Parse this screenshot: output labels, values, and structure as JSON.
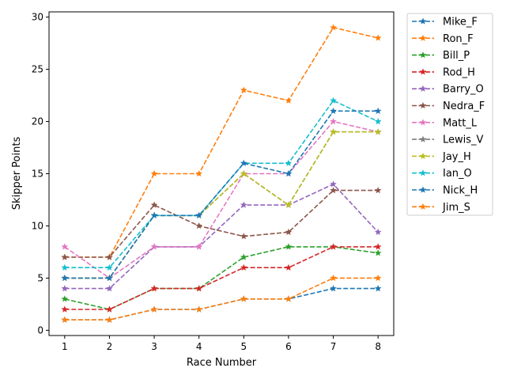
{
  "chart_data": {
    "type": "line",
    "xlabel": "Race Number",
    "ylabel": "Skipper Points",
    "x": [
      1,
      2,
      3,
      4,
      5,
      6,
      7,
      8
    ],
    "xticks": [
      "1",
      "2",
      "3",
      "4",
      "5",
      "6",
      "7",
      "8"
    ],
    "yticks": [
      "0",
      "5",
      "10",
      "15",
      "20",
      "25",
      "30"
    ],
    "xlim": [
      0.65,
      8.35
    ],
    "ylim": [
      -0.5,
      30.5
    ],
    "line_style": "dashed",
    "marker": "star",
    "legend_placement": "outside-right-top",
    "grid": false,
    "series": [
      {
        "name": "Mike_F",
        "color": "#1f77b4",
        "values": [
          1,
          1,
          2,
          2,
          3,
          3,
          4,
          4
        ]
      },
      {
        "name": "Ron_F",
        "color": "#ff7f0e",
        "values": [
          7,
          7,
          15,
          15,
          23,
          22,
          29,
          28
        ]
      },
      {
        "name": "Bill_P",
        "color": "#2ca02c",
        "values": [
          3,
          2,
          4,
          4,
          7,
          8,
          8,
          7.4
        ]
      },
      {
        "name": "Rod_H",
        "color": "#d62728",
        "values": [
          2,
          2,
          4,
          4,
          6,
          6,
          8,
          8
        ]
      },
      {
        "name": "Barry_O",
        "color": "#9467bd",
        "values": [
          4,
          4,
          8,
          8,
          12,
          12,
          14,
          9.4
        ]
      },
      {
        "name": "Nedra_F",
        "color": "#8c564b",
        "values": [
          7,
          7,
          12,
          10,
          9,
          9.4,
          13.4,
          13.4
        ]
      },
      {
        "name": "Matt_L",
        "color": "#e377c2",
        "values": [
          8,
          5,
          8,
          8,
          15,
          15,
          20,
          19
        ]
      },
      {
        "name": "Lewis_V",
        "color": "#7f7f7f",
        "values": [
          5,
          5,
          11,
          11,
          15,
          12,
          19,
          19
        ]
      },
      {
        "name": "Jay_H",
        "color": "#bcbd22",
        "values": [
          5,
          5,
          11,
          11,
          15,
          12,
          19,
          19
        ]
      },
      {
        "name": "Ian_O",
        "color": "#17becf",
        "values": [
          6,
          6,
          11,
          11,
          16,
          16,
          22,
          20
        ]
      },
      {
        "name": "Nick_H",
        "color": "#1f77b4",
        "values": [
          5,
          5,
          11,
          11,
          16,
          15,
          21,
          21
        ]
      },
      {
        "name": "Jim_S",
        "color": "#ff7f0e",
        "values": [
          1,
          1,
          2,
          2,
          3,
          3,
          5,
          5
        ]
      }
    ]
  }
}
